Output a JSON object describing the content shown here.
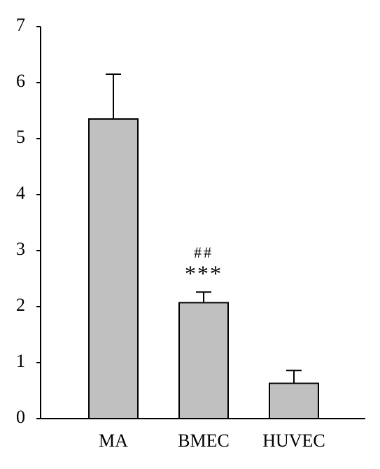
{
  "chart_data": {
    "type": "bar",
    "categories": [
      "MA",
      "BMEC",
      "HUVEC"
    ],
    "values": [
      5.35,
      2.07,
      0.63
    ],
    "errors": [
      0.8,
      0.19,
      0.23
    ],
    "color": "#c0c0c0",
    "annotations": [
      "##",
      "***"
    ],
    "ylim": [
      0,
      7
    ],
    "yticks": [
      0,
      1,
      2,
      3,
      4,
      5,
      6,
      7
    ],
    "grid": false
  }
}
